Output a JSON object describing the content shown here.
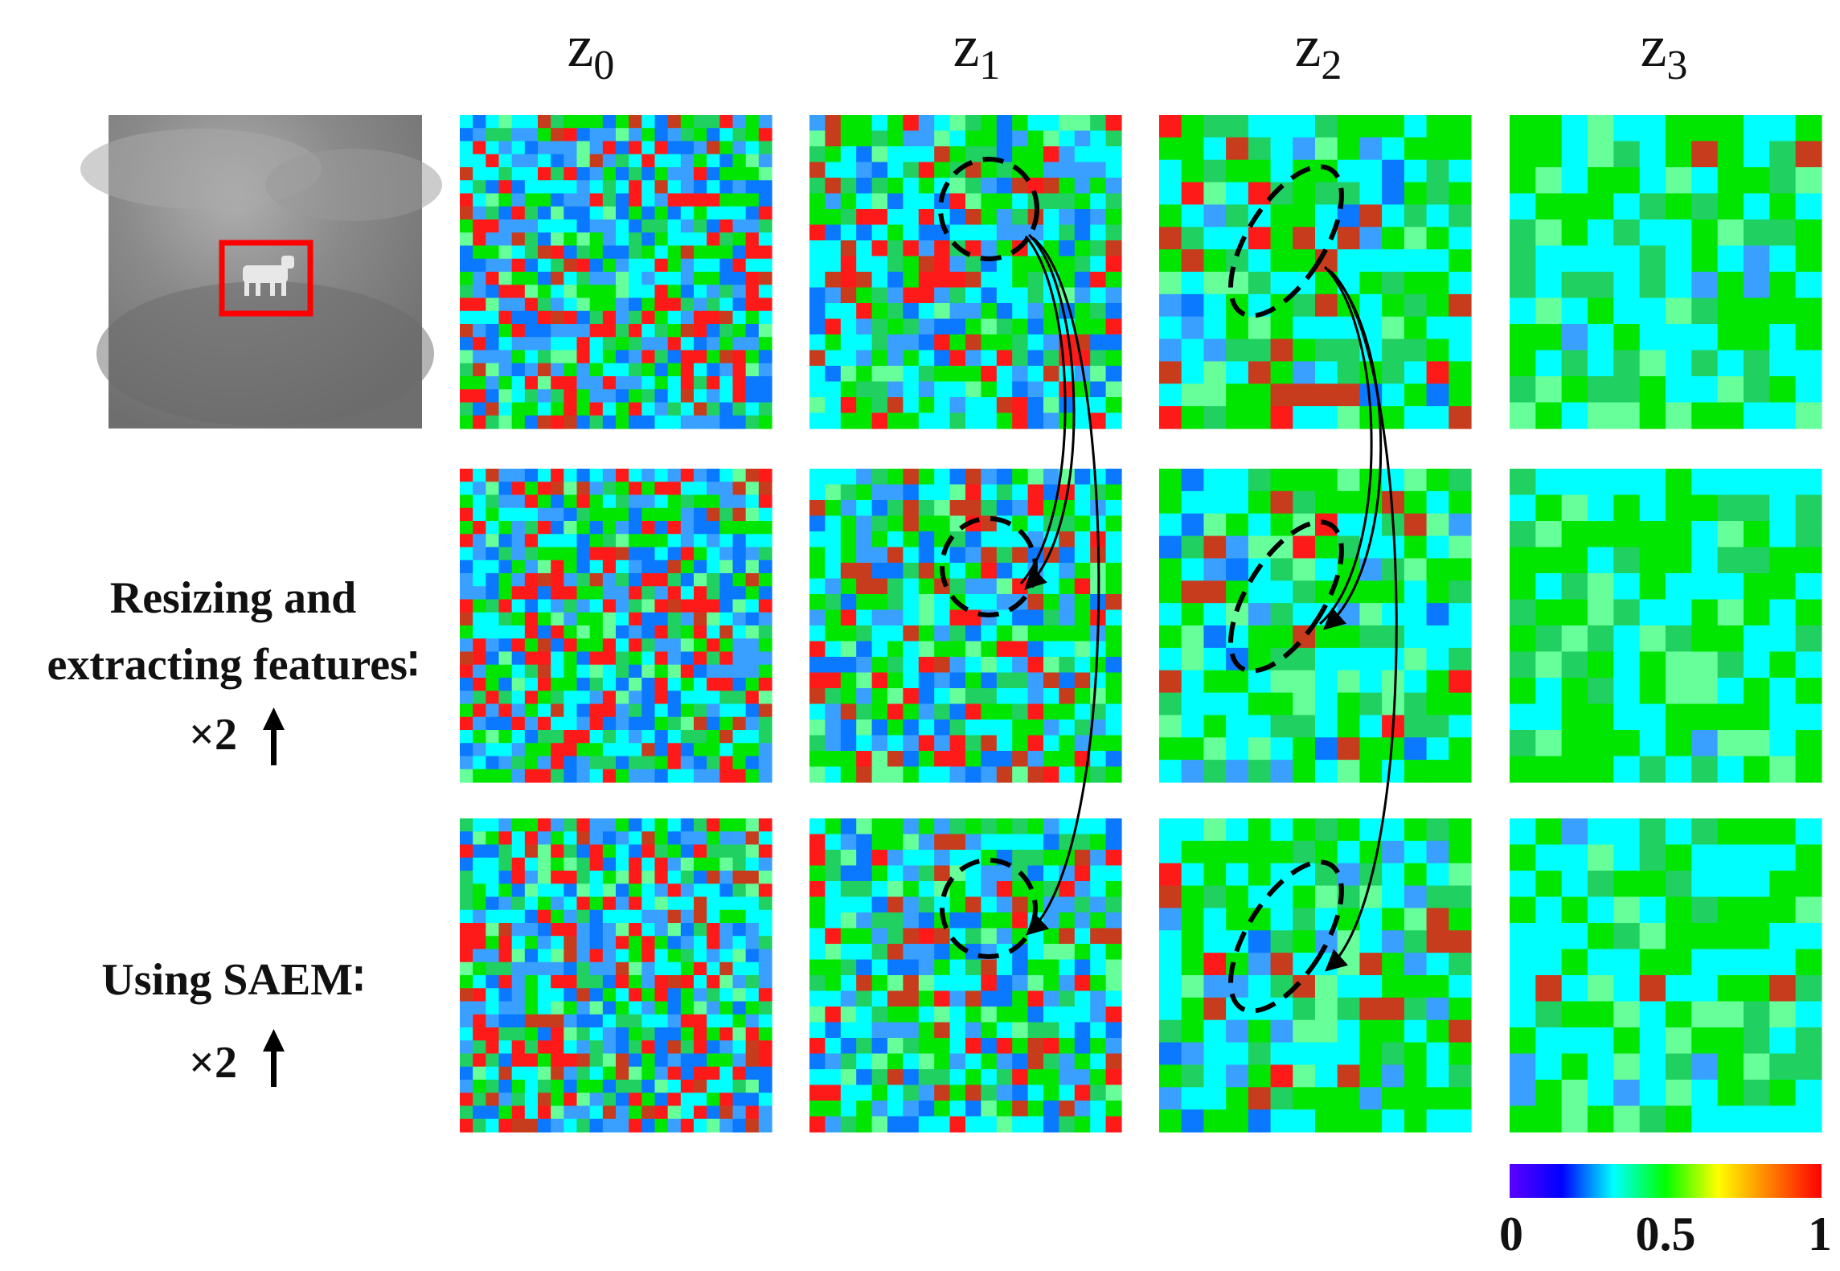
{
  "columns": [
    {
      "main": "z",
      "sub": "0"
    },
    {
      "main": "z",
      "sub": "1"
    },
    {
      "main": "z",
      "sub": "2"
    },
    {
      "main": "z",
      "sub": "3"
    }
  ],
  "rows": [
    {
      "lines": []
    },
    {
      "lines": [
        "Resizing and",
        "extracting features∶",
        "×2"
      ]
    },
    {
      "lines": [
        "Using SAEM∶",
        "×2"
      ]
    }
  ],
  "colorbar": {
    "ticks": [
      "0",
      "0.5",
      "1"
    ],
    "colors": [
      "#5b00ff",
      "#0000ff",
      "#00ffff",
      "#00ff00",
      "#ffff00",
      "#ff8000",
      "#ff0000"
    ]
  },
  "input_image": {
    "sky_color": "#7a7a7a",
    "box_color": "#ff0000",
    "target_color": "#e8e8e8"
  },
  "heatmap_palette": {
    "background": "#00e68a",
    "cell_colors": [
      "#ff1a1a",
      "#c83c1e",
      "#0a78ff",
      "#3aa0ff",
      "#00ffff",
      "#00e600",
      "#20d060",
      "#66ff99"
    ]
  }
}
